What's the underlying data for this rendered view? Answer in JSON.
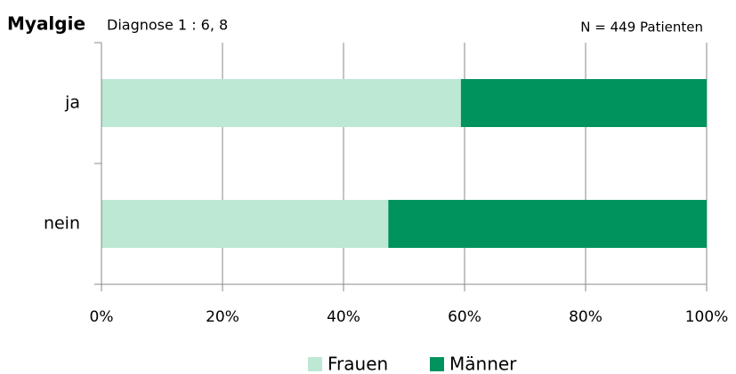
{
  "chart_data": {
    "type": "stacked_barh",
    "title": "Myalgie",
    "subtitle": "Diagnose 1 : 6, 8",
    "annotation": "N = 449 Patienten",
    "categories": [
      "ja",
      "nein"
    ],
    "series": [
      {
        "name": "Frauen",
        "color": "#bde8d3",
        "values": [
          59.4,
          47.4
        ]
      },
      {
        "name": "Männer",
        "color": "#00935d",
        "values": [
          40.6,
          52.6
        ]
      }
    ],
    "xlim": [
      0,
      100
    ],
    "xticks": [
      {
        "value": 0,
        "label": "0%"
      },
      {
        "value": 20,
        "label": "20%"
      },
      {
        "value": 40,
        "label": "40%"
      },
      {
        "value": 60,
        "label": "60%"
      },
      {
        "value": 80,
        "label": "80%"
      },
      {
        "value": 100,
        "label": "100%"
      }
    ],
    "grid": true,
    "legend": "bottom"
  }
}
